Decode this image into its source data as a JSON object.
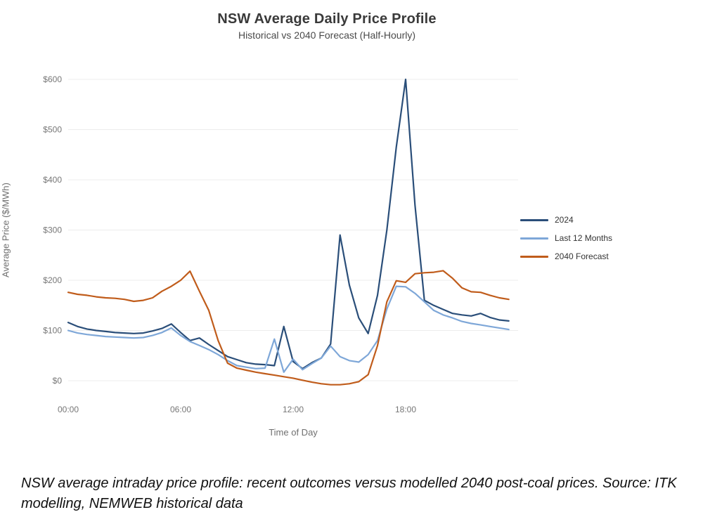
{
  "chart_data": {
    "type": "line",
    "title": "NSW Average Daily Price Profile",
    "subtitle": "Historical vs 2040 Forecast (Half-Hourly)",
    "xlabel": "Time of Day",
    "ylabel": "Average Price ($/MWh)",
    "x_ticks": [
      "00:00",
      "06:00",
      "12:00",
      "18:00"
    ],
    "y_ticks": [
      "$0",
      "$100",
      "$200",
      "$300",
      "$400",
      "$500",
      "$600"
    ],
    "ylim": [
      0,
      600
    ],
    "grid": "horizontal, very faint",
    "legend_position": "right",
    "resolution": "half-hourly",
    "x": [
      "00:00",
      "00:30",
      "01:00",
      "01:30",
      "02:00",
      "02:30",
      "03:00",
      "03:30",
      "04:00",
      "04:30",
      "05:00",
      "05:30",
      "06:00",
      "06:30",
      "07:00",
      "07:30",
      "08:00",
      "08:30",
      "09:00",
      "09:30",
      "10:00",
      "10:30",
      "11:00",
      "11:30",
      "12:00",
      "12:30",
      "13:00",
      "13:30",
      "14:00",
      "14:30",
      "15:00",
      "15:30",
      "16:00",
      "16:30",
      "17:00",
      "17:30",
      "18:00",
      "18:30",
      "19:00",
      "19:30",
      "20:00",
      "20:30",
      "21:00",
      "21:30",
      "22:00",
      "22:30",
      "23:00",
      "23:30"
    ],
    "series": [
      {
        "name": "2024",
        "color": "#2a4e79",
        "values": [
          116,
          108,
          103,
          100,
          98,
          96,
          95,
          94,
          95,
          99,
          104,
          113,
          96,
          80,
          85,
          72,
          60,
          48,
          42,
          36,
          33,
          32,
          30,
          108,
          38,
          24,
          36,
          45,
          73,
          290,
          190,
          125,
          94,
          170,
          300,
          465,
          600,
          350,
          160,
          150,
          142,
          134,
          131,
          129,
          134,
          126,
          121,
          119
        ]
      },
      {
        "name": "Last 12 Months",
        "color": "#7ea7d8",
        "values": [
          100,
          95,
          92,
          90,
          88,
          87,
          86,
          85,
          86,
          90,
          96,
          105,
          90,
          78,
          70,
          62,
          52,
          40,
          30,
          27,
          24,
          25,
          83,
          17,
          43,
          22,
          34,
          45,
          69,
          48,
          40,
          37,
          52,
          80,
          143,
          188,
          187,
          174,
          157,
          140,
          131,
          125,
          118,
          114,
          111,
          108,
          105,
          102
        ]
      },
      {
        "name": "2040 Forecast",
        "color": "#c05c1b",
        "values": [
          176,
          172,
          170,
          167,
          165,
          164,
          162,
          158,
          160,
          165,
          178,
          188,
          200,
          218,
          178,
          140,
          80,
          35,
          25,
          21,
          17,
          14,
          11,
          8,
          5,
          1,
          -3,
          -6,
          -8,
          -8,
          -6,
          -2,
          12,
          70,
          157,
          199,
          196,
          213,
          215,
          216,
          219,
          204,
          185,
          177,
          176,
          170,
          165,
          162
        ]
      }
    ]
  },
  "caption": "NSW average intraday price profile: recent outcomes versus modelled 2040 post-coal prices. Source: ITK modelling, NEMWEB historical data",
  "colors": {
    "grid": "#ececec",
    "tick_label": "#767676",
    "background": "#ffffff"
  }
}
